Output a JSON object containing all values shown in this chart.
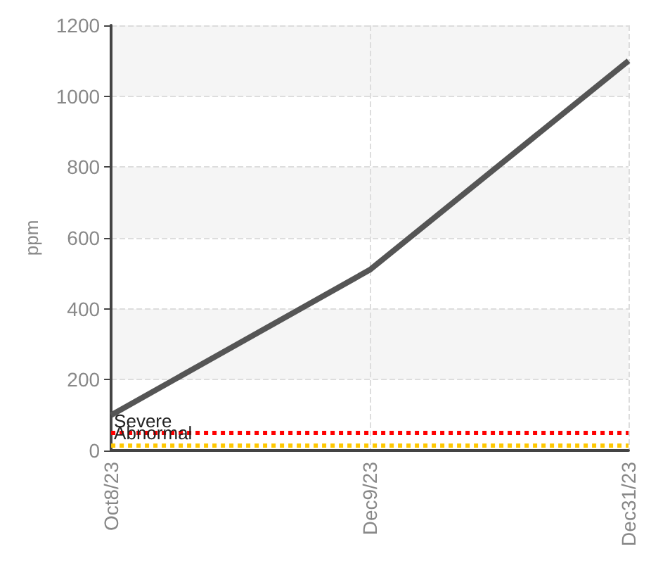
{
  "chart_data": {
    "type": "line",
    "ylabel": "ppm",
    "categories": [
      "Oct8/23",
      "Dec9/23",
      "Dec31/23"
    ],
    "series": [
      {
        "color": "#555555",
        "values": [
          100,
          510,
          1100
        ]
      }
    ],
    "ylim": [
      0,
      1200
    ],
    "yticks": [
      0,
      200,
      400,
      600,
      800,
      1000,
      1200
    ],
    "grid": true,
    "marker": "none",
    "line_style": "solid",
    "ref_lines": [
      {
        "axis": "y",
        "value": 50,
        "label": "Severe",
        "color": "#ff0000",
        "line_style": "dotted"
      },
      {
        "axis": "y",
        "value": 15,
        "label": "Abnormal",
        "color": "#ffc800",
        "line_style": "dotted"
      }
    ]
  }
}
